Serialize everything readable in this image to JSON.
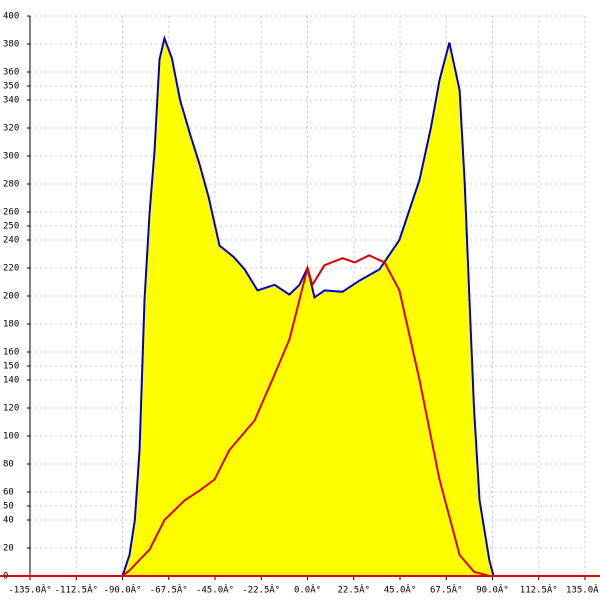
{
  "chart_data": {
    "type": "area-line",
    "xlim": [
      -135,
      135
    ],
    "ylim": [
      0,
      400
    ],
    "xticks": [
      {
        "value": -135,
        "label": "-135.0Â°"
      },
      {
        "value": -112.5,
        "label": "-112.5Â°"
      },
      {
        "value": -90,
        "label": "-90.0Â°"
      },
      {
        "value": -67.5,
        "label": "-67.5Â°"
      },
      {
        "value": -45,
        "label": "-45.0Â°"
      },
      {
        "value": -22.5,
        "label": "-22.5Â°"
      },
      {
        "value": 0,
        "label": "0.0Â°"
      },
      {
        "value": 22.5,
        "label": "22.5Â°"
      },
      {
        "value": 45,
        "label": "45.0Â°"
      },
      {
        "value": 67.5,
        "label": "67.5Â°"
      },
      {
        "value": 90,
        "label": "90.0Â°"
      },
      {
        "value": 112.5,
        "label": "112.5Â°"
      },
      {
        "value": 135,
        "label": "135.0Â°"
      }
    ],
    "yticks": [
      0,
      20,
      40,
      50,
      60,
      80,
      100,
      120,
      140,
      150,
      160,
      180,
      200,
      220,
      240,
      250,
      260,
      280,
      300,
      320,
      340,
      350,
      360,
      380,
      400
    ],
    "grid": true,
    "series": [
      {
        "color": "#0000cc",
        "fill": "#ffff00",
        "x": [
          -90,
          -86.6,
          -84,
          -81.7,
          -79.3,
          -76.8,
          -74.4,
          -72,
          -69.6,
          -66,
          -62,
          -57,
          -52.5,
          -48,
          -42.8,
          -36,
          -30.6,
          -24.3,
          -16,
          -8.8,
          -3.9,
          0,
          3.4,
          8.3,
          17,
          25.3,
          35,
          44.7,
          54.5,
          60,
          64.2,
          69,
          74,
          76.5,
          78.8,
          81,
          83.7,
          88.5,
          90.5
        ],
        "values": [
          0,
          15,
          40,
          90,
          197,
          260,
          304,
          369,
          384,
          370,
          340,
          315,
          294,
          270,
          236,
          228,
          219,
          204,
          208,
          201,
          208,
          220,
          199,
          204,
          203,
          211,
          219,
          240,
          283,
          320,
          354,
          381,
          347,
          280,
          197,
          120,
          54,
          11,
          0
        ]
      },
      {
        "color": "#dd0000",
        "x": [
          -90,
          -86.6,
          -76.8,
          -69.6,
          -59.8,
          -52.5,
          -45.2,
          -38,
          -25.8,
          -16,
          -8.8,
          0,
          2.4,
          8.3,
          17,
          23,
          30,
          37.5,
          44.7,
          54.5,
          64.2,
          74,
          81,
          88.5
        ],
        "values": [
          0,
          4,
          19,
          40,
          54,
          61,
          69,
          90,
          111,
          144,
          169,
          220,
          208,
          222,
          227,
          224,
          229,
          224,
          204,
          140,
          69,
          15,
          3,
          0
        ]
      }
    ]
  }
}
